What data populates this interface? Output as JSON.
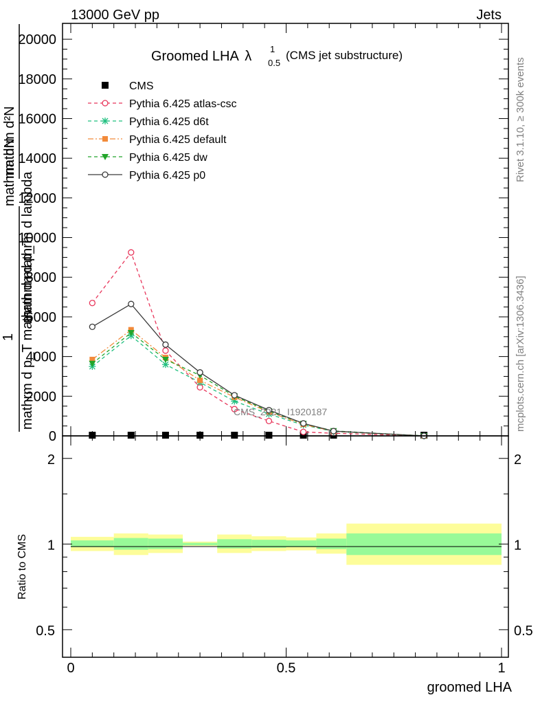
{
  "header": {
    "left": "13000 GeV pp",
    "right": "Jets"
  },
  "side_labels": {
    "rivet": "Rivet 3.1.10, ≥ 300k events",
    "mcplots": "mcplots.cern.ch [arXiv:1306.3436]"
  },
  "watermark": "CMS_2021_I1920187",
  "colors": {
    "atlas_csc": "#e8355a",
    "d6t": "#1fbf7f",
    "default": "#f28a3a",
    "dw": "#22a52a",
    "p0": "#3a3a3a",
    "band_inner": "#98fa98",
    "band_outer": "#fdfd9a"
  },
  "chart_data": [
    {
      "type": "line",
      "title_main": "Groomed LHA",
      "title_lambda": "λ",
      "title_sup": "1",
      "title_sub": "0.5",
      "title_note": "(CMS jet substructure)",
      "ylabel_num_one": "1",
      "ylabel_num_frac": "mathrm dN",
      "ylabel_den_frac": "mathrm d p_T",
      "ylabel_frac_num": "mathrm d²N",
      "ylabel_frac_den": "mathrm d p_T mathrm d mathrm d lambda",
      "ylabel_lines": [
        "mathrm d²N",
        "mathrm d p_T mathrm d mathrm d lambda",
        "1",
        "mathrm dN / mathrm d p_T"
      ],
      "xlim": [
        0,
        1
      ],
      "ylim": [
        0,
        20800
      ],
      "yticks": [
        0,
        2000,
        4000,
        6000,
        8000,
        10000,
        12000,
        14000,
        16000,
        18000,
        20000
      ],
      "ytick_labels": [
        "0",
        "2000",
        "4000",
        "6000",
        "8000",
        "10000",
        "12000",
        "14000",
        "16000",
        "18000",
        "20000"
      ],
      "x": [
        0.05,
        0.14,
        0.22,
        0.3,
        0.38,
        0.46,
        0.54,
        0.61,
        0.82
      ],
      "series": [
        {
          "name": "CMS",
          "key": "cms",
          "values": [
            0,
            0,
            0,
            0,
            0,
            0,
            0,
            0,
            0
          ]
        },
        {
          "name": "Pythia 6.425 atlas-csc",
          "key": "atlas_csc",
          "values": [
            6700,
            9250,
            4300,
            2450,
            1350,
            750,
            200,
            130,
            0
          ]
        },
        {
          "name": "Pythia 6.425 d6t",
          "key": "d6t",
          "values": [
            3500,
            5050,
            3600,
            2700,
            1750,
            1100,
            550,
            220,
            0
          ]
        },
        {
          "name": "Pythia 6.425 default",
          "key": "default",
          "values": [
            3850,
            5350,
            3950,
            2800,
            1950,
            1200,
            580,
            230,
            0
          ]
        },
        {
          "name": "Pythia 6.425 dw",
          "key": "dw",
          "values": [
            3650,
            5200,
            3850,
            3050,
            2000,
            1250,
            620,
            250,
            0
          ]
        },
        {
          "name": "Pythia 6.425 p0",
          "key": "p0",
          "values": [
            5500,
            6650,
            4600,
            3200,
            2050,
            1300,
            630,
            240,
            0
          ]
        }
      ]
    },
    {
      "type": "area",
      "ylabel": "Ratio to CMS",
      "xlabel": "groomed LHA",
      "xlim": [
        0,
        1
      ],
      "xticks": [
        0,
        0.5,
        1
      ],
      "xtick_labels": [
        "0",
        "0.5",
        "1"
      ],
      "ylim_log": [
        0.4,
        2.4
      ],
      "yticks": [
        0.5,
        1,
        2
      ],
      "ytick_labels": [
        "0.5",
        "1",
        "2"
      ],
      "bins": [
        {
          "lo": 0.0,
          "hi": 0.1,
          "inner": [
            0.975,
            1.03
          ],
          "outer": [
            0.945,
            1.06
          ]
        },
        {
          "lo": 0.1,
          "hi": 0.18,
          "inner": [
            0.955,
            1.05
          ],
          "outer": [
            0.915,
            1.09
          ]
        },
        {
          "lo": 0.18,
          "hi": 0.26,
          "inner": [
            0.96,
            1.045
          ],
          "outer": [
            0.93,
            1.08
          ]
        },
        {
          "lo": 0.26,
          "hi": 0.34,
          "inner": [
            0.99,
            1.01
          ],
          "outer": [
            0.985,
            1.02
          ]
        },
        {
          "lo": 0.34,
          "hi": 0.42,
          "inner": [
            0.965,
            1.04
          ],
          "outer": [
            0.93,
            1.08
          ]
        },
        {
          "lo": 0.42,
          "hi": 0.5,
          "inner": [
            0.97,
            1.035
          ],
          "outer": [
            0.945,
            1.065
          ]
        },
        {
          "lo": 0.5,
          "hi": 0.57,
          "inner": [
            0.975,
            1.03
          ],
          "outer": [
            0.95,
            1.055
          ]
        },
        {
          "lo": 0.57,
          "hi": 0.64,
          "inner": [
            0.96,
            1.045
          ],
          "outer": [
            0.925,
            1.09
          ]
        },
        {
          "lo": 0.64,
          "hi": 1.0,
          "inner": [
            0.915,
            1.09
          ],
          "outer": [
            0.845,
            1.18
          ]
        }
      ]
    }
  ]
}
